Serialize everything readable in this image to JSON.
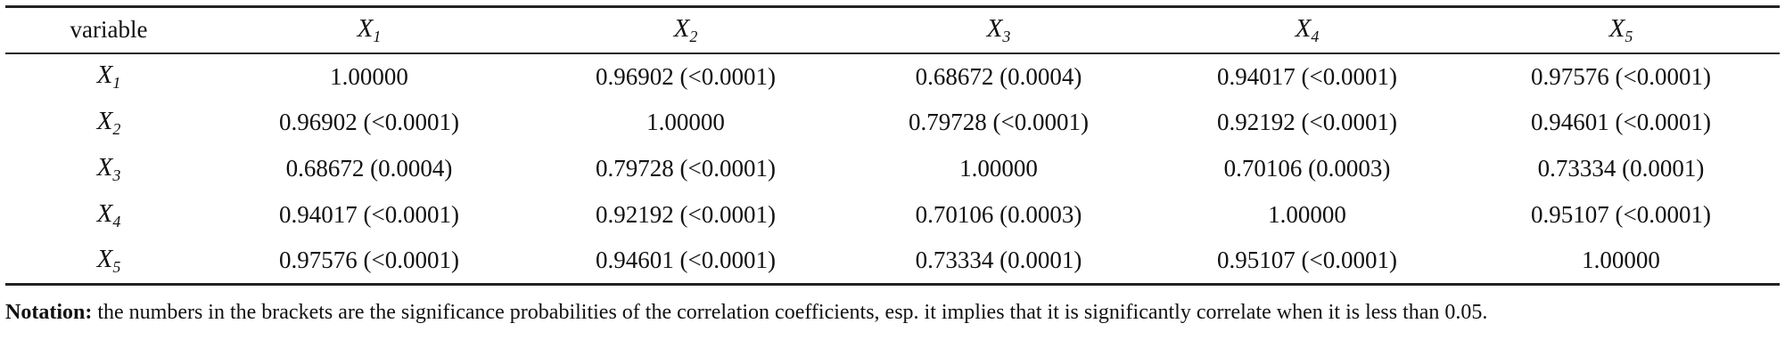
{
  "table": {
    "header": {
      "first": "variable",
      "columns": [
        {
          "letter": "X",
          "sub": "1"
        },
        {
          "letter": "X",
          "sub": "2"
        },
        {
          "letter": "X",
          "sub": "3"
        },
        {
          "letter": "X",
          "sub": "4"
        },
        {
          "letter": "X",
          "sub": "5"
        }
      ]
    },
    "rows": [
      {
        "var": {
          "letter": "X",
          "sub": "1"
        },
        "cells": [
          "1.00000",
          "0.96902 (<0.0001)",
          "0.68672 (0.0004)",
          "0.94017 (<0.0001)",
          "0.97576 (<0.0001)"
        ]
      },
      {
        "var": {
          "letter": "X",
          "sub": "2"
        },
        "cells": [
          "0.96902 (<0.0001)",
          "1.00000",
          "0.79728 (<0.0001)",
          "0.92192 (<0.0001)",
          "0.94601 (<0.0001)"
        ]
      },
      {
        "var": {
          "letter": "X",
          "sub": "3"
        },
        "cells": [
          "0.68672 (0.0004)",
          "0.79728 (<0.0001)",
          "1.00000",
          "0.70106 (0.0003)",
          "0.73334 (0.0001)"
        ]
      },
      {
        "var": {
          "letter": "X",
          "sub": "4"
        },
        "cells": [
          "0.94017 (<0.0001)",
          "0.92192 (<0.0001)",
          "0.70106 (0.0003)",
          "1.00000",
          "0.95107 (<0.0001)"
        ]
      },
      {
        "var": {
          "letter": "X",
          "sub": "5"
        },
        "cells": [
          "0.97576 (<0.0001)",
          "0.94601 (<0.0001)",
          "0.73334 (0.0001)",
          "0.95107 (<0.0001)",
          "1.00000"
        ]
      }
    ]
  },
  "note": {
    "label": "Notation:",
    "text": " the numbers in the brackets are the significance probabilities of the correlation coefficients, esp. it implies that it is significantly correlate when it is less than 0.05."
  }
}
